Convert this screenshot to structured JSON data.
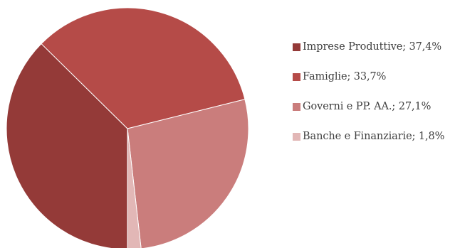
{
  "chart_data": {
    "type": "pie",
    "title": "",
    "legend_position": "right",
    "slices": [
      {
        "label": "Imprese Produttive; 37,4%",
        "name": "Imprese Produttive",
        "value": 37.4,
        "color": "#943a38"
      },
      {
        "label": "Famiglie; 33,7%",
        "name": "Famiglie",
        "value": 33.7,
        "color": "#b54b48"
      },
      {
        "label": "Governi e PP. AA.; 27,1%",
        "name": "Governi e PP. AA.",
        "value": 27.1,
        "color": "#ca7d7c"
      },
      {
        "label": "Banche e Finanziarie; 1,8%",
        "name": "Banche e Finanziarie",
        "value": 1.8,
        "color": "#e2b7b6"
      }
    ]
  }
}
